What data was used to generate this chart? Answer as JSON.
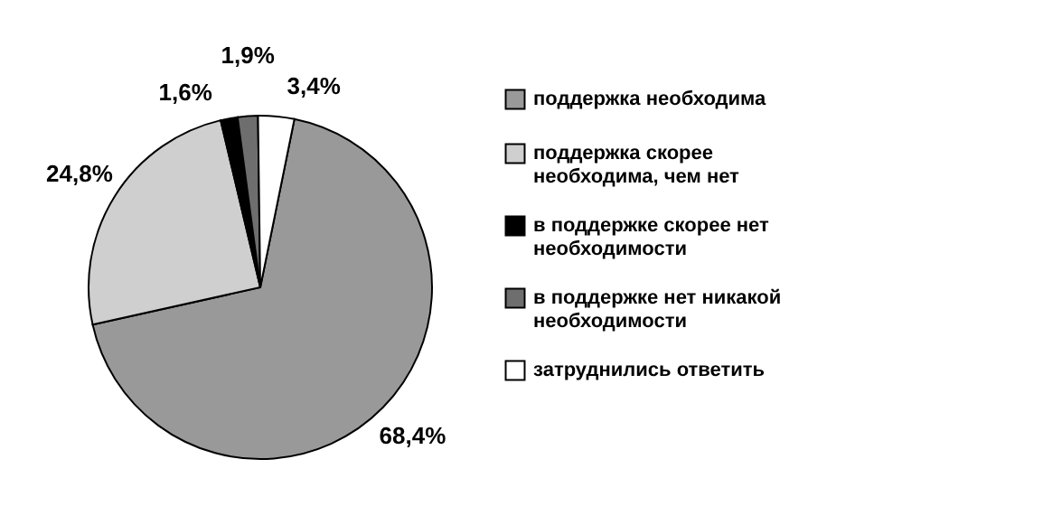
{
  "chart_data": {
    "type": "pie",
    "categories": [
      "поддержка необходима",
      "поддержка скорее необходима, чем нет",
      "в поддержке скорее нет необходимости",
      "в поддержке нет никакой необходимости",
      "затруднились ответить"
    ],
    "values": [
      68.4,
      24.8,
      1.6,
      1.9,
      3.4
    ],
    "colors": [
      "#999999",
      "#cfcfcf",
      "#000000",
      "#6e6e6e",
      "#ffffff"
    ],
    "value_labels": [
      "68,4%",
      "24,8%",
      "1,6%",
      "1,9%",
      "3,4%"
    ],
    "legend": "right"
  }
}
